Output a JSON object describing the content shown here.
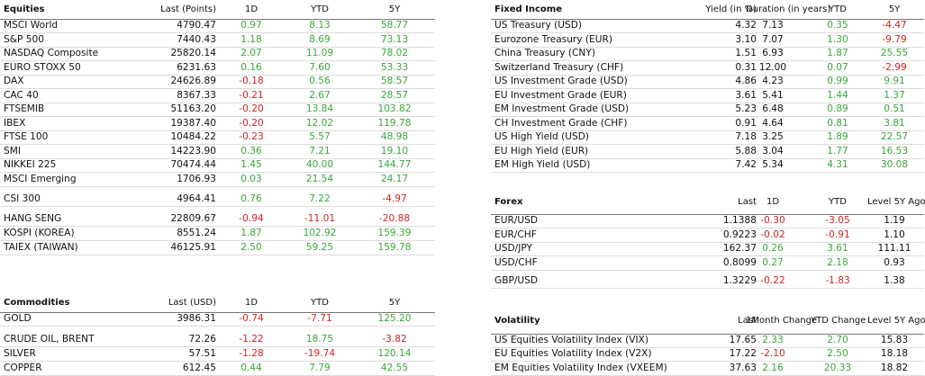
{
  "colors": {
    "positive": "#3aa63a",
    "negative": "#d02424",
    "neutral": "#111111"
  },
  "equities": {
    "headers": [
      "Equities",
      "Last (Points)",
      "1D",
      "YTD",
      "5Y"
    ],
    "rows": [
      [
        "MSCI World",
        "4790.47",
        "0.97",
        "8.13",
        "58.77"
      ],
      [
        "S&P 500",
        "7440.43",
        "1.18",
        "8.69",
        "73.13"
      ],
      [
        "NASDAQ Composite",
        "25820.14",
        "2.07",
        "11.09",
        "78.02"
      ],
      [
        "EURO STOXX 50",
        "6231.63",
        "0.16",
        "7.60",
        "53.33"
      ],
      [
        "DAX",
        "24626.89",
        "-0.18",
        "0.56",
        "58.57"
      ],
      [
        "CAC 40",
        "8367.33",
        "-0.21",
        "2.67",
        "28.57"
      ],
      [
        "FTSEMIB",
        "51163.20",
        "-0.20",
        "13.84",
        "103.82"
      ],
      [
        "IBEX",
        "19387.40",
        "-0.20",
        "12.02",
        "119.78"
      ],
      [
        "FTSE 100",
        "10484.22",
        "-0.23",
        "5.57",
        "48.98"
      ],
      [
        "SMI",
        "14223.90",
        "0.36",
        "7.21",
        "19.10"
      ],
      [
        "NIKKEI 225",
        "70474.44",
        "1.45",
        "40.00",
        "144.77"
      ],
      [
        "MSCI Emerging",
        "1706.93",
        "0.03",
        "21.54",
        "24.17"
      ],
      [
        "CSI 300",
        "4964.41",
        "0.76",
        "7.22",
        "-4.97"
      ],
      [
        "HANG SENG",
        "22809.67",
        "-0.94",
        "-11.01",
        "-20.88"
      ],
      [
        "KOSPI (KOREA)",
        "8551.24",
        "1.87",
        "102.92",
        "159.39"
      ],
      [
        "TAIEX (TAIWAN)",
        "46125.91",
        "2.50",
        "59.25",
        "159.78"
      ]
    ]
  },
  "commodities": {
    "headers": [
      "Commodities",
      "Last (USD)",
      "1D",
      "YTD",
      "5Y"
    ],
    "rows": [
      [
        "GOLD",
        "3986.31",
        "-0.74",
        "-7.71",
        "125.20"
      ],
      [
        "CRUDE OIL, BRENT",
        "72.26",
        "-1.22",
        "18.75",
        "-3.82"
      ],
      [
        "SILVER",
        "57.51",
        "-1.28",
        "-19.74",
        "120.14"
      ],
      [
        "COPPER",
        "612.45",
        "0.44",
        "7.79",
        "42.55"
      ]
    ]
  },
  "fixed_income": {
    "headers": [
      "Fixed Income",
      "Yield (in %)",
      "Duration (in years)",
      "YTD",
      "5Y"
    ],
    "rows": [
      [
        "US Treasury (USD)",
        "4.32",
        "7.13",
        "0.35",
        "-4.47"
      ],
      [
        "Eurozone Treasury (EUR)",
        "3.10",
        "7.07",
        "1.30",
        "-9.79"
      ],
      [
        "China Treasury (CNY)",
        "1.51",
        "6.93",
        "1.87",
        "25.55"
      ],
      [
        "Switzerland Treasury (CHF)",
        "0.31",
        "12.00",
        "0.07",
        "-2.99"
      ],
      [
        "US Investment Grade (USD)",
        "4.86",
        "4.23",
        "0.99",
        "9.91"
      ],
      [
        "EU Investment Grade (EUR)",
        "3.61",
        "5.41",
        "1.44",
        "1.37"
      ],
      [
        "EM Investment Grade (USD)",
        "5.23",
        "6.48",
        "0.89",
        "0.51"
      ],
      [
        "CH Investment Grade (CHF)",
        "0.91",
        "4.64",
        "0.81",
        "3.81"
      ],
      [
        "US High Yield (USD)",
        "7.18",
        "3.25",
        "1.89",
        "22.57"
      ],
      [
        "EU High Yield (EUR)",
        "5.88",
        "3.04",
        "1.77",
        "16.53"
      ],
      [
        "EM High Yield (USD)",
        "7.42",
        "5.34",
        "4.31",
        "30.08"
      ]
    ]
  },
  "forex": {
    "headers": [
      "Forex",
      "Last",
      "1D",
      "YTD",
      "Level 5Y Ago"
    ],
    "rows": [
      [
        "EUR/USD",
        "1.1388",
        "-0.30",
        "-3.05",
        "1.19"
      ],
      [
        "EUR/CHF",
        "0.9223",
        "-0.02",
        "-0.91",
        "1.10"
      ],
      [
        "USD/JPY",
        "162.37",
        "0.26",
        "3.61",
        "111.11"
      ],
      [
        "USD/CHF",
        "0.8099",
        "0.27",
        "2.18",
        "0.93"
      ],
      [
        "GBP/USD",
        "1.3229",
        "-0.22",
        "-1.83",
        "1.38"
      ]
    ]
  },
  "volatility": {
    "headers": [
      "Volatility",
      "Last",
      "1Month Change",
      "YTD Change",
      "Level 5Y Ago"
    ],
    "rows": [
      [
        "US Equities Volatility Index (VIX)",
        "17.65",
        "2.33",
        "2.70",
        "15.83"
      ],
      [
        "EU Equities Volatility Index (V2X)",
        "17.22",
        "-2.10",
        "2.50",
        "18.18"
      ],
      [
        "EM Equities Volatility Index (VXEEM)",
        "37.63",
        "2.16",
        "20.33",
        "18.82"
      ]
    ]
  }
}
